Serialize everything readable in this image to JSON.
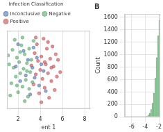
{
  "chart_data": [
    {
      "type": "scatter",
      "x_label": "ent 1",
      "legend_title": "Infection Classification",
      "legend": "top",
      "xlim": [
        1,
        8.5
      ],
      "xticks": [
        2,
        4,
        6,
        8
      ],
      "ylim": [
        -3.5,
        3.5
      ],
      "grid": true,
      "tick_labels": "x",
      "series": [
        {
          "name": "Inconclusive",
          "color": "#4c72b0",
          "values": [
            [
              1.8,
              0.3
            ],
            [
              2.2,
              -1.0
            ],
            [
              2.5,
              1.7
            ],
            [
              2.7,
              -0.5
            ],
            [
              2.9,
              0.9
            ],
            [
              3.1,
              -2.2
            ],
            [
              3.3,
              0.2
            ],
            [
              3.5,
              -0.7
            ],
            [
              3.7,
              1.1
            ],
            [
              3.9,
              -1.4
            ],
            [
              4.1,
              0.5
            ],
            [
              4.3,
              -0.1
            ],
            [
              2.0,
              2.3
            ],
            [
              3.4,
              2.0
            ],
            [
              4.5,
              -1.9
            ]
          ]
        },
        {
          "name": "Negative",
          "color": "#55a868",
          "values": [
            [
              1.2,
              0.5
            ],
            [
              1.4,
              -1.2
            ],
            [
              1.5,
              1.8
            ],
            [
              1.6,
              0.2
            ],
            [
              1.8,
              -0.6
            ],
            [
              1.9,
              1.1
            ],
            [
              2.0,
              -2.0
            ],
            [
              2.1,
              0.7
            ],
            [
              2.2,
              -0.3
            ],
            [
              2.3,
              2.2
            ],
            [
              2.4,
              -1.5
            ],
            [
              2.5,
              0.1
            ],
            [
              2.6,
              1.4
            ],
            [
              2.7,
              -0.9
            ],
            [
              2.8,
              0.6
            ],
            [
              2.9,
              -2.4
            ],
            [
              3.0,
              1.9
            ],
            [
              3.1,
              -0.2
            ],
            [
              3.2,
              0.9
            ],
            [
              3.3,
              -1.1
            ],
            [
              3.4,
              2.6
            ],
            [
              1.3,
              -2.3
            ],
            [
              1.7,
              2.7
            ],
            [
              2.2,
              1.6
            ],
            [
              2.6,
              -2.8
            ],
            [
              1.1,
              1.3
            ],
            [
              3.0,
              -1.7
            ],
            [
              2.4,
              2.9
            ],
            [
              1.9,
              -1.4
            ],
            [
              2.8,
              -0.1
            ]
          ]
        },
        {
          "name": "Positive",
          "color": "#c44e52",
          "values": [
            [
              3.2,
              0.4
            ],
            [
              3.4,
              -1.3
            ],
            [
              3.5,
              1.5
            ],
            [
              3.6,
              -0.4
            ],
            [
              3.7,
              2.3
            ],
            [
              3.8,
              0.8
            ],
            [
              3.9,
              -2.1
            ],
            [
              4.0,
              0.0
            ],
            [
              4.1,
              1.2
            ],
            [
              4.2,
              -0.8
            ],
            [
              4.3,
              2.8
            ],
            [
              4.4,
              -1.6
            ],
            [
              4.5,
              0.5
            ],
            [
              4.6,
              1.9
            ],
            [
              4.7,
              -0.3
            ],
            [
              4.8,
              -2.5
            ],
            [
              4.9,
              1.0
            ],
            [
              5.0,
              -1.0
            ],
            [
              5.1,
              2.1
            ],
            [
              5.2,
              0.3
            ],
            [
              5.3,
              -1.8
            ],
            [
              5.4,
              1.4
            ],
            [
              5.5,
              -0.6
            ],
            [
              5.6,
              0.9
            ],
            [
              5.8,
              -0.2
            ],
            [
              3.6,
              2.9
            ],
            [
              4.1,
              -2.9
            ],
            [
              4.7,
              2.5
            ],
            [
              5.0,
              0.2
            ],
            [
              4.4,
              0.7
            ]
          ]
        }
      ]
    },
    {
      "type": "histogram",
      "title": "B",
      "y_label": "Count",
      "bins": [
        -4.2,
        -4.0,
        -3.8,
        -3.6,
        -3.4,
        -3.2,
        -3.0,
        -2.8,
        -2.6,
        -2.4,
        -2.2,
        -2.0,
        -1.8
      ],
      "values": [
        2,
        5,
        12,
        30,
        60,
        120,
        220,
        380,
        620,
        950,
        1300,
        1550
      ],
      "color": "#8fcb9b",
      "xlim": [
        -7,
        -1.8
      ],
      "xticks": [
        -6,
        -4,
        -2
      ],
      "ylim": [
        0,
        1650
      ],
      "yticks": [
        0,
        200,
        400,
        600,
        800,
        1000,
        1200,
        1400,
        1600
      ],
      "grid": true
    }
  ]
}
